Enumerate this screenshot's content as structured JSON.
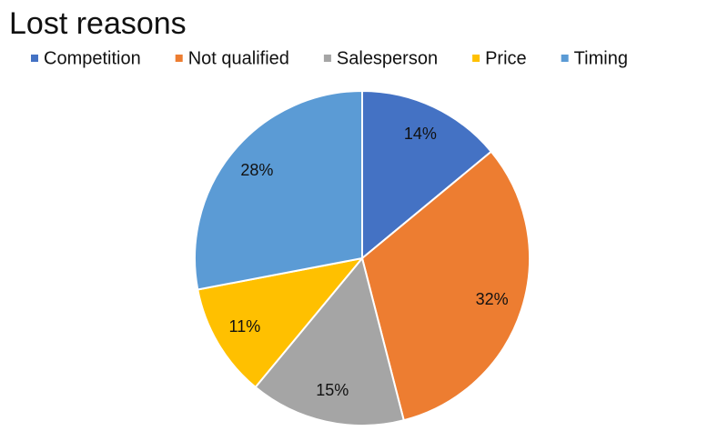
{
  "chart_data": {
    "type": "pie",
    "title": "Lost reasons",
    "categories": [
      "Competition",
      "Not qualified",
      "Salesperson",
      "Price",
      "Timing"
    ],
    "values": [
      14,
      32,
      15,
      11,
      28
    ],
    "value_labels": [
      "14%",
      "32%",
      "15%",
      "11%",
      "28%"
    ],
    "colors": [
      "#4472c4",
      "#ed7d31",
      "#a5a5a5",
      "#ffc000",
      "#5b9bd5"
    ],
    "legend": "top"
  }
}
